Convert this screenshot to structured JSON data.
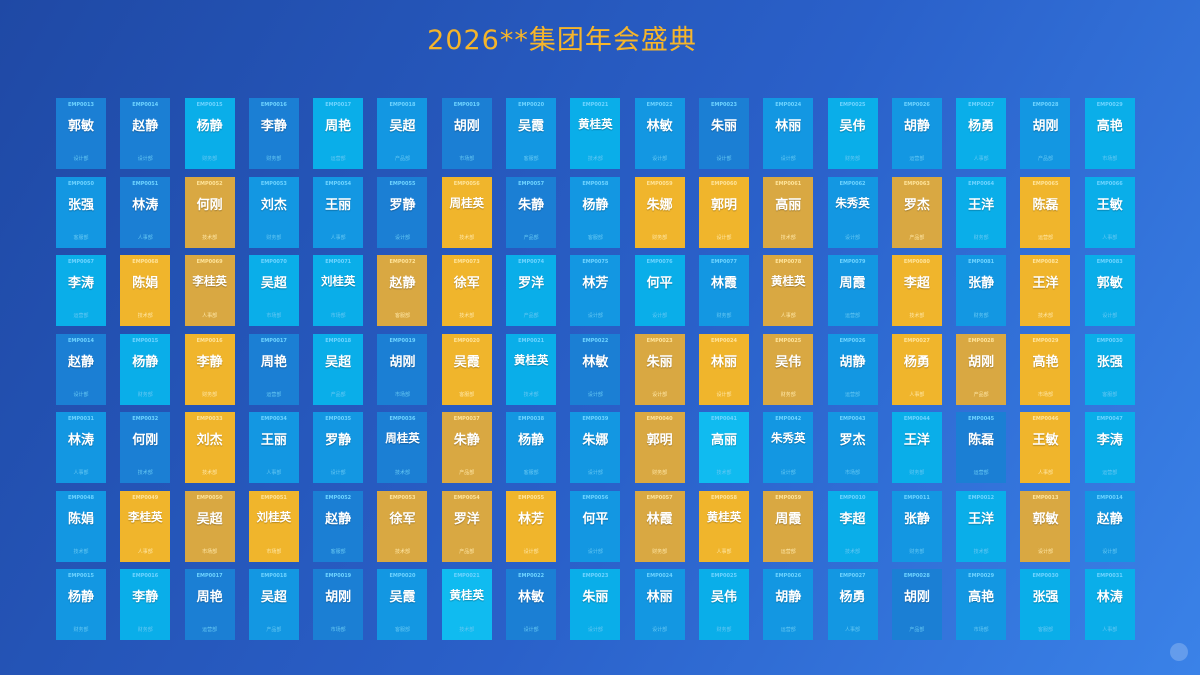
{
  "title": "2026**集团年会盛典",
  "colors": {
    "title": "#f6b52a",
    "card_highlight": "#f0b52c",
    "card_highlight_dim": "#d9a842",
    "card_blue_tones": [
      "#1b7fd4",
      "#1397e2",
      "#0aaee9",
      "#10bbf0"
    ]
  },
  "legend_notes": "highlighted cards shown in gold",
  "cards": [
    {
      "id": "EMP0013",
      "name": "郭敏",
      "dept": "设计部",
      "hl": 0,
      "tone": 0
    },
    {
      "id": "EMP0014",
      "name": "赵静",
      "dept": "设计部",
      "hl": 0,
      "tone": 0
    },
    {
      "id": "EMP0015",
      "name": "杨静",
      "dept": "财务部",
      "hl": 0,
      "tone": 2
    },
    {
      "id": "EMP0016",
      "name": "李静",
      "dept": "财务部",
      "hl": 0,
      "tone": 0
    },
    {
      "id": "EMP0017",
      "name": "周艳",
      "dept": "运营部",
      "hl": 0,
      "tone": 2
    },
    {
      "id": "EMP0018",
      "name": "吴超",
      "dept": "产品部",
      "hl": 0,
      "tone": 1
    },
    {
      "id": "EMP0019",
      "name": "胡刚",
      "dept": "市场部",
      "hl": 0,
      "tone": 0
    },
    {
      "id": "EMP0020",
      "name": "吴霞",
      "dept": "客服部",
      "hl": 0,
      "tone": 1
    },
    {
      "id": "EMP0021",
      "name": "黄桂英",
      "dept": "技术部",
      "hl": 0,
      "tone": 2
    },
    {
      "id": "EMP0022",
      "name": "林敏",
      "dept": "设计部",
      "hl": 0,
      "tone": 1
    },
    {
      "id": "EMP0023",
      "name": "朱丽",
      "dept": "设计部",
      "hl": 0,
      "tone": 0
    },
    {
      "id": "EMP0024",
      "name": "林丽",
      "dept": "设计部",
      "hl": 0,
      "tone": 1
    },
    {
      "id": "EMP0025",
      "name": "吴伟",
      "dept": "财务部",
      "hl": 0,
      "tone": 2
    },
    {
      "id": "EMP0026",
      "name": "胡静",
      "dept": "运营部",
      "hl": 0,
      "tone": 1
    },
    {
      "id": "EMP0027",
      "name": "杨勇",
      "dept": "人事部",
      "hl": 0,
      "tone": 2
    },
    {
      "id": "EMP0028",
      "name": "胡刚",
      "dept": "产品部",
      "hl": 0,
      "tone": 1
    },
    {
      "id": "EMP0029",
      "name": "高艳",
      "dept": "市场部",
      "hl": 0,
      "tone": 2
    },
    {
      "id": "EMP0050",
      "name": "张强",
      "dept": "客服部",
      "hl": 0,
      "tone": 1
    },
    {
      "id": "EMP0051",
      "name": "林涛",
      "dept": "人事部",
      "hl": 0,
      "tone": 0
    },
    {
      "id": "EMP0052",
      "name": "何刚",
      "dept": "技术部",
      "hl": 2,
      "tone": 0
    },
    {
      "id": "EMP0053",
      "name": "刘杰",
      "dept": "财务部",
      "hl": 0,
      "tone": 1
    },
    {
      "id": "EMP0054",
      "name": "王丽",
      "dept": "人事部",
      "hl": 0,
      "tone": 1
    },
    {
      "id": "EMP0055",
      "name": "罗静",
      "dept": "设计部",
      "hl": 0,
      "tone": 0
    },
    {
      "id": "EMP0056",
      "name": "周桂英",
      "dept": "技术部",
      "hl": 1,
      "tone": 0
    },
    {
      "id": "EMP0057",
      "name": "朱静",
      "dept": "产品部",
      "hl": 0,
      "tone": 0
    },
    {
      "id": "EMP0058",
      "name": "杨静",
      "dept": "客服部",
      "hl": 0,
      "tone": 1
    },
    {
      "id": "EMP0059",
      "name": "朱娜",
      "dept": "财务部",
      "hl": 1,
      "tone": 0
    },
    {
      "id": "EMP0060",
      "name": "郭明",
      "dept": "设计部",
      "hl": 1,
      "tone": 0
    },
    {
      "id": "EMP0061",
      "name": "高丽",
      "dept": "技术部",
      "hl": 2,
      "tone": 0
    },
    {
      "id": "EMP0062",
      "name": "朱秀英",
      "dept": "设计部",
      "hl": 0,
      "tone": 1
    },
    {
      "id": "EMP0063",
      "name": "罗杰",
      "dept": "产品部",
      "hl": 2,
      "tone": 0
    },
    {
      "id": "EMP0064",
      "name": "王洋",
      "dept": "财务部",
      "hl": 0,
      "tone": 2
    },
    {
      "id": "EMP0065",
      "name": "陈磊",
      "dept": "运营部",
      "hl": 1,
      "tone": 0
    },
    {
      "id": "EMP0066",
      "name": "王敏",
      "dept": "人事部",
      "hl": 0,
      "tone": 2
    },
    {
      "id": "EMP0067",
      "name": "李涛",
      "dept": "运营部",
      "hl": 0,
      "tone": 2
    },
    {
      "id": "EMP0068",
      "name": "陈娟",
      "dept": "技术部",
      "hl": 1,
      "tone": 0
    },
    {
      "id": "EMP0069",
      "name": "李桂英",
      "dept": "人事部",
      "hl": 2,
      "tone": 0
    },
    {
      "id": "EMP0070",
      "name": "吴超",
      "dept": "市场部",
      "hl": 0,
      "tone": 2
    },
    {
      "id": "EMP0071",
      "name": "刘桂英",
      "dept": "市场部",
      "hl": 0,
      "tone": 2
    },
    {
      "id": "EMP0072",
      "name": "赵静",
      "dept": "客服部",
      "hl": 2,
      "tone": 0
    },
    {
      "id": "EMP0073",
      "name": "徐军",
      "dept": "技术部",
      "hl": 1,
      "tone": 0
    },
    {
      "id": "EMP0074",
      "name": "罗洋",
      "dept": "产品部",
      "hl": 0,
      "tone": 2
    },
    {
      "id": "EMP0075",
      "name": "林芳",
      "dept": "设计部",
      "hl": 0,
      "tone": 1
    },
    {
      "id": "EMP0076",
      "name": "何平",
      "dept": "设计部",
      "hl": 0,
      "tone": 2
    },
    {
      "id": "EMP0077",
      "name": "林霞",
      "dept": "财务部",
      "hl": 0,
      "tone": 1
    },
    {
      "id": "EMP0078",
      "name": "黄桂英",
      "dept": "人事部",
      "hl": 2,
      "tone": 0
    },
    {
      "id": "EMP0079",
      "name": "周霞",
      "dept": "运营部",
      "hl": 0,
      "tone": 1
    },
    {
      "id": "EMP0080",
      "name": "李超",
      "dept": "技术部",
      "hl": 1,
      "tone": 0
    },
    {
      "id": "EMP0081",
      "name": "张静",
      "dept": "财务部",
      "hl": 0,
      "tone": 1
    },
    {
      "id": "EMP0082",
      "name": "王洋",
      "dept": "技术部",
      "hl": 1,
      "tone": 0
    },
    {
      "id": "EMP0083",
      "name": "郭敏",
      "dept": "设计部",
      "hl": 0,
      "tone": 2
    },
    {
      "id": "EMP0014",
      "name": "赵静",
      "dept": "设计部",
      "hl": 0,
      "tone": 0
    },
    {
      "id": "EMP0015",
      "name": "杨静",
      "dept": "财务部",
      "hl": 0,
      "tone": 2
    },
    {
      "id": "EMP0016",
      "name": "李静",
      "dept": "财务部",
      "hl": 1,
      "tone": 0
    },
    {
      "id": "EMP0017",
      "name": "周艳",
      "dept": "运营部",
      "hl": 0,
      "tone": 0
    },
    {
      "id": "EMP0018",
      "name": "吴超",
      "dept": "产品部",
      "hl": 0,
      "tone": 2
    },
    {
      "id": "EMP0019",
      "name": "胡刚",
      "dept": "市场部",
      "hl": 0,
      "tone": 0
    },
    {
      "id": "EMP0020",
      "name": "吴霞",
      "dept": "客服部",
      "hl": 1,
      "tone": 0
    },
    {
      "id": "EMP0021",
      "name": "黄桂英",
      "dept": "技术部",
      "hl": 0,
      "tone": 2
    },
    {
      "id": "EMP0022",
      "name": "林敏",
      "dept": "设计部",
      "hl": 0,
      "tone": 0
    },
    {
      "id": "EMP0023",
      "name": "朱丽",
      "dept": "设计部",
      "hl": 2,
      "tone": 0
    },
    {
      "id": "EMP0024",
      "name": "林丽",
      "dept": "设计部",
      "hl": 1,
      "tone": 0
    },
    {
      "id": "EMP0025",
      "name": "吴伟",
      "dept": "财务部",
      "hl": 2,
      "tone": 0
    },
    {
      "id": "EMP0026",
      "name": "胡静",
      "dept": "运营部",
      "hl": 0,
      "tone": 1
    },
    {
      "id": "EMP0027",
      "name": "杨勇",
      "dept": "人事部",
      "hl": 1,
      "tone": 0
    },
    {
      "id": "EMP0028",
      "name": "胡刚",
      "dept": "产品部",
      "hl": 2,
      "tone": 0
    },
    {
      "id": "EMP0029",
      "name": "高艳",
      "dept": "市场部",
      "hl": 1,
      "tone": 0
    },
    {
      "id": "EMP0030",
      "name": "张强",
      "dept": "客服部",
      "hl": 0,
      "tone": 2
    },
    {
      "id": "EMP0031",
      "name": "林涛",
      "dept": "人事部",
      "hl": 0,
      "tone": 1
    },
    {
      "id": "EMP0032",
      "name": "何刚",
      "dept": "技术部",
      "hl": 0,
      "tone": 0
    },
    {
      "id": "EMP0033",
      "name": "刘杰",
      "dept": "技术部",
      "hl": 1,
      "tone": 0
    },
    {
      "id": "EMP0034",
      "name": "王丽",
      "dept": "人事部",
      "hl": 0,
      "tone": 1
    },
    {
      "id": "EMP0035",
      "name": "罗静",
      "dept": "设计部",
      "hl": 0,
      "tone": 1
    },
    {
      "id": "EMP0036",
      "name": "周桂英",
      "dept": "技术部",
      "hl": 0,
      "tone": 0
    },
    {
      "id": "EMP0037",
      "name": "朱静",
      "dept": "产品部",
      "hl": 2,
      "tone": 0
    },
    {
      "id": "EMP0038",
      "name": "杨静",
      "dept": "客服部",
      "hl": 0,
      "tone": 1
    },
    {
      "id": "EMP0039",
      "name": "朱娜",
      "dept": "设计部",
      "hl": 0,
      "tone": 1
    },
    {
      "id": "EMP0040",
      "name": "郭明",
      "dept": "财务部",
      "hl": 2,
      "tone": 0
    },
    {
      "id": "EMP0041",
      "name": "高丽",
      "dept": "技术部",
      "hl": 0,
      "tone": 3
    },
    {
      "id": "EMP0042",
      "name": "朱秀英",
      "dept": "设计部",
      "hl": 0,
      "tone": 1
    },
    {
      "id": "EMP0043",
      "name": "罗杰",
      "dept": "市场部",
      "hl": 0,
      "tone": 1
    },
    {
      "id": "EMP0044",
      "name": "王洋",
      "dept": "财务部",
      "hl": 0,
      "tone": 2
    },
    {
      "id": "EMP0045",
      "name": "陈磊",
      "dept": "运营部",
      "hl": 0,
      "tone": 0
    },
    {
      "id": "EMP0046",
      "name": "王敏",
      "dept": "人事部",
      "hl": 1,
      "tone": 0
    },
    {
      "id": "EMP0047",
      "name": "李涛",
      "dept": "运营部",
      "hl": 0,
      "tone": 2
    },
    {
      "id": "EMP0048",
      "name": "陈娟",
      "dept": "技术部",
      "hl": 0,
      "tone": 1
    },
    {
      "id": "EMP0049",
      "name": "李桂英",
      "dept": "人事部",
      "hl": 1,
      "tone": 0
    },
    {
      "id": "EMP0050",
      "name": "吴超",
      "dept": "市场部",
      "hl": 2,
      "tone": 0
    },
    {
      "id": "EMP0051",
      "name": "刘桂英",
      "dept": "市场部",
      "hl": 1,
      "tone": 0
    },
    {
      "id": "EMP0052",
      "name": "赵静",
      "dept": "客服部",
      "hl": 0,
      "tone": 0
    },
    {
      "id": "EMP0053",
      "name": "徐军",
      "dept": "技术部",
      "hl": 2,
      "tone": 0
    },
    {
      "id": "EMP0054",
      "name": "罗洋",
      "dept": "产品部",
      "hl": 2,
      "tone": 0
    },
    {
      "id": "EMP0055",
      "name": "林芳",
      "dept": "设计部",
      "hl": 1,
      "tone": 0
    },
    {
      "id": "EMP0056",
      "name": "何平",
      "dept": "设计部",
      "hl": 0,
      "tone": 1
    },
    {
      "id": "EMP0057",
      "name": "林霞",
      "dept": "财务部",
      "hl": 2,
      "tone": 0
    },
    {
      "id": "EMP0058",
      "name": "黄桂英",
      "dept": "人事部",
      "hl": 1,
      "tone": 0
    },
    {
      "id": "EMP0059",
      "name": "周霞",
      "dept": "运营部",
      "hl": 2,
      "tone": 0
    },
    {
      "id": "EMP0010",
      "name": "李超",
      "dept": "技术部",
      "hl": 0,
      "tone": 2
    },
    {
      "id": "EMP0011",
      "name": "张静",
      "dept": "财务部",
      "hl": 0,
      "tone": 1
    },
    {
      "id": "EMP0012",
      "name": "王洋",
      "dept": "技术部",
      "hl": 0,
      "tone": 2
    },
    {
      "id": "EMP0013",
      "name": "郭敏",
      "dept": "设计部",
      "hl": 2,
      "tone": 0
    },
    {
      "id": "EMP0014",
      "name": "赵静",
      "dept": "设计部",
      "hl": 0,
      "tone": 1
    },
    {
      "id": "EMP0015",
      "name": "杨静",
      "dept": "财务部",
      "hl": 0,
      "tone": 1
    },
    {
      "id": "EMP0016",
      "name": "李静",
      "dept": "财务部",
      "hl": 0,
      "tone": 2
    },
    {
      "id": "EMP0017",
      "name": "周艳",
      "dept": "运营部",
      "hl": 0,
      "tone": 0
    },
    {
      "id": "EMP0018",
      "name": "吴超",
      "dept": "产品部",
      "hl": 0,
      "tone": 1
    },
    {
      "id": "EMP0019",
      "name": "胡刚",
      "dept": "市场部",
      "hl": 0,
      "tone": 0
    },
    {
      "id": "EMP0020",
      "name": "吴霞",
      "dept": "客服部",
      "hl": 0,
      "tone": 1
    },
    {
      "id": "EMP0021",
      "name": "黄桂英",
      "dept": "技术部",
      "hl": 0,
      "tone": 3
    },
    {
      "id": "EMP0022",
      "name": "林敏",
      "dept": "设计部",
      "hl": 0,
      "tone": 0
    },
    {
      "id": "EMP0023",
      "name": "朱丽",
      "dept": "设计部",
      "hl": 0,
      "tone": 2
    },
    {
      "id": "EMP0024",
      "name": "林丽",
      "dept": "设计部",
      "hl": 0,
      "tone": 1
    },
    {
      "id": "EMP0025",
      "name": "吴伟",
      "dept": "财务部",
      "hl": 0,
      "tone": 2
    },
    {
      "id": "EMP0026",
      "name": "胡静",
      "dept": "运营部",
      "hl": 0,
      "tone": 1
    },
    {
      "id": "EMP0027",
      "name": "杨勇",
      "dept": "人事部",
      "hl": 0,
      "tone": 1
    },
    {
      "id": "EMP0028",
      "name": "胡刚",
      "dept": "产品部",
      "hl": 0,
      "tone": 0
    },
    {
      "id": "EMP0029",
      "name": "高艳",
      "dept": "市场部",
      "hl": 0,
      "tone": 1
    },
    {
      "id": "EMP0030",
      "name": "张强",
      "dept": "客服部",
      "hl": 0,
      "tone": 2
    },
    {
      "id": "EMP0031",
      "name": "林涛",
      "dept": "人事部",
      "hl": 0,
      "tone": 2
    }
  ]
}
